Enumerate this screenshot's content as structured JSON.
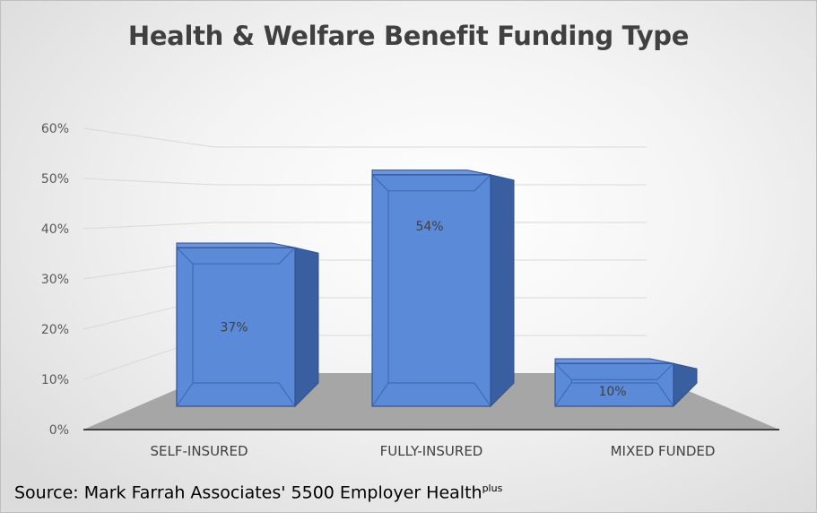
{
  "chart_data": {
    "type": "bar",
    "title": "Health & Welfare Benefit Funding Type",
    "categories": [
      "SELF-INSURED",
      "FULLY-INSURED",
      "MIXED FUNDED"
    ],
    "values": [
      37,
      54,
      10
    ],
    "data_labels": [
      "37%",
      "54%",
      "10%"
    ],
    "yticks": [
      "0%",
      "10%",
      "20%",
      "30%",
      "40%",
      "50%",
      "60%"
    ],
    "ylim": [
      0,
      60
    ],
    "grid": true,
    "legend": "none",
    "bar_color": "#4472c4"
  },
  "source": {
    "text": "Source:  Mark Farrah Associates' 5500 Employer Health",
    "superscript": "plus"
  }
}
